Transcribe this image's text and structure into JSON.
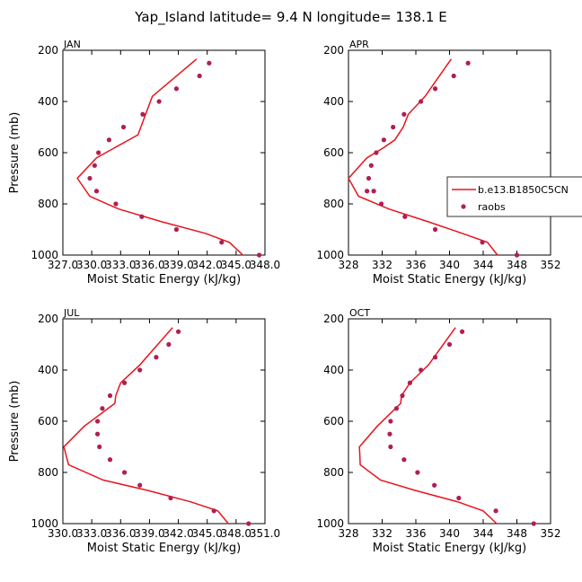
{
  "figure_title": "Yap_Island  latitude= 9.4 N longitude= 138.1 E",
  "legend": {
    "line_label": "b.e13.B1850C5CN",
    "points_label": "raobs",
    "placement": "right, between top and bottom rows"
  },
  "colors": {
    "model_line": "#e8141c",
    "raobs_points": "#b01e55",
    "axes": "#000000"
  },
  "chart_data": [
    {
      "type": "line",
      "panel": "JAN",
      "xlabel": "Moist Static Energy (kJ/kg)",
      "ylabel": "Pressure (mb)",
      "xlim": [
        327,
        348
      ],
      "ylim": [
        1000,
        200
      ],
      "y_inverted": true,
      "x_ticks": [
        327,
        330,
        333,
        336,
        339,
        342,
        345,
        348
      ],
      "x_tick_labels": [
        "327.0",
        "330.0",
        "333.0",
        "336.0",
        "339.0",
        "342.0",
        "345.0",
        "348.0"
      ],
      "y_ticks": [
        200,
        400,
        600,
        800,
        1000
      ],
      "y_tick_labels": [
        "200",
        "400",
        "600",
        "800",
        "1000"
      ],
      "series": [
        {
          "name": "b.e13.B1850C5CN",
          "kind": "line",
          "x": [
            340.9,
            336.3,
            334.8,
            330.5,
            328.5,
            329.8,
            332.8,
            337.3,
            341.8,
            344.3,
            345.7
          ],
          "y": [
            234,
            380,
            530,
            620,
            700,
            770,
            820,
            870,
            915,
            950,
            1000
          ]
        },
        {
          "name": "raobs",
          "kind": "scatter",
          "x": [
            342.2,
            341.2,
            338.8,
            337.0,
            335.3,
            333.3,
            331.8,
            330.7,
            330.3,
            329.8,
            330.5,
            332.5,
            335.2,
            338.8,
            343.5,
            347.4
          ],
          "y": [
            250,
            300,
            350,
            400,
            450,
            500,
            550,
            600,
            650,
            700,
            750,
            800,
            850,
            900,
            950,
            1000
          ]
        }
      ]
    },
    {
      "type": "line",
      "panel": "APR",
      "xlabel": "Moist Static Energy (kJ/kg)",
      "ylabel": "",
      "xlim": [
        328,
        352
      ],
      "ylim": [
        1000,
        200
      ],
      "y_inverted": true,
      "x_ticks": [
        328,
        332,
        336,
        340,
        344,
        348,
        352
      ],
      "x_tick_labels": [
        "328",
        "332",
        "336",
        "340",
        "344",
        "348",
        "352"
      ],
      "y_ticks": [
        200,
        400,
        600,
        800,
        1000
      ],
      "y_tick_labels": [
        "200",
        "400",
        "600",
        "800",
        "1000"
      ],
      "series": [
        {
          "name": "b.e13.B1850C5CN",
          "kind": "line",
          "x": [
            340.2,
            337.1,
            335.1,
            334.5,
            333.5,
            332.2,
            330.2,
            328.0,
            329.2,
            332.8,
            337.5,
            341.5,
            344.5,
            345.7
          ],
          "y": [
            234,
            380,
            450,
            500,
            550,
            580,
            620,
            700,
            770,
            820,
            870,
            915,
            950,
            1000
          ]
        },
        {
          "name": "raobs",
          "kind": "scatter",
          "x": [
            342.2,
            340.5,
            338.3,
            336.6,
            334.6,
            333.3,
            332.2,
            331.3,
            330.7,
            330.4,
            330.2,
            331.0,
            331.9,
            334.7,
            338.3,
            343.9,
            348.0
          ],
          "y": [
            250,
            300,
            350,
            400,
            450,
            500,
            550,
            600,
            650,
            700,
            750,
            750,
            800,
            850,
            900,
            950,
            1000
          ]
        }
      ]
    },
    {
      "type": "line",
      "panel": "JUL",
      "xlabel": "Moist Static Energy (kJ/kg)",
      "ylabel": "Pressure (mb)",
      "xlim": [
        330,
        351
      ],
      "ylim": [
        1000,
        200
      ],
      "y_inverted": true,
      "x_ticks": [
        330,
        333,
        336,
        339,
        342,
        345,
        348,
        351
      ],
      "x_tick_labels": [
        "330.0",
        "333.0",
        "336.0",
        "339.0",
        "342.0",
        "345.0",
        "348.0",
        "351.0"
      ],
      "y_ticks": [
        200,
        400,
        600,
        800,
        1000
      ],
      "y_tick_labels": [
        "200",
        "400",
        "600",
        "800",
        "1000"
      ],
      "series": [
        {
          "name": "b.e13.B1850C5CN",
          "kind": "line",
          "x": [
            341.4,
            338.0,
            336.0,
            335.5,
            335.4,
            332.2,
            330.1,
            330.6,
            334.2,
            338.8,
            343.3,
            346.1,
            347.2
          ],
          "y": [
            234,
            380,
            450,
            500,
            530,
            620,
            700,
            770,
            830,
            870,
            915,
            950,
            1000
          ]
        },
        {
          "name": "raobs",
          "kind": "scatter",
          "x": [
            342.0,
            341.0,
            339.7,
            338.0,
            336.4,
            334.9,
            334.1,
            333.6,
            333.6,
            333.8,
            334.9,
            336.4,
            338.0,
            341.2,
            345.7,
            349.3
          ],
          "y": [
            250,
            300,
            350,
            400,
            450,
            500,
            550,
            600,
            650,
            700,
            750,
            800,
            850,
            900,
            950,
            1000
          ]
        }
      ]
    },
    {
      "type": "line",
      "panel": "OCT",
      "xlabel": "Moist Static Energy (kJ/kg)",
      "ylabel": "",
      "xlim": [
        328,
        352
      ],
      "ylim": [
        1000,
        200
      ],
      "y_inverted": true,
      "x_ticks": [
        328,
        332,
        336,
        340,
        344,
        348,
        352
      ],
      "x_tick_labels": [
        "328",
        "332",
        "336",
        "340",
        "344",
        "348",
        "352"
      ],
      "y_ticks": [
        200,
        400,
        600,
        800,
        1000
      ],
      "y_tick_labels": [
        "200",
        "400",
        "600",
        "800",
        "1000"
      ],
      "series": [
        {
          "name": "b.e13.B1850C5CN",
          "kind": "line",
          "x": [
            340.7,
            337.5,
            335.3,
            334.3,
            334.2,
            331.4,
            329.3,
            329.4,
            331.8,
            335.9,
            341.0,
            344.0,
            345.6
          ],
          "y": [
            234,
            380,
            450,
            500,
            530,
            620,
            700,
            770,
            830,
            870,
            915,
            950,
            1000
          ]
        },
        {
          "name": "raobs",
          "kind": "scatter",
          "x": [
            341.5,
            340.0,
            338.3,
            336.6,
            335.3,
            334.4,
            333.7,
            333.0,
            332.9,
            333.0,
            334.6,
            336.2,
            338.2,
            341.1,
            345.5,
            350.0
          ],
          "y": [
            250,
            300,
            350,
            400,
            450,
            500,
            550,
            600,
            650,
            700,
            750,
            800,
            850,
            900,
            950,
            1000
          ]
        }
      ]
    }
  ]
}
